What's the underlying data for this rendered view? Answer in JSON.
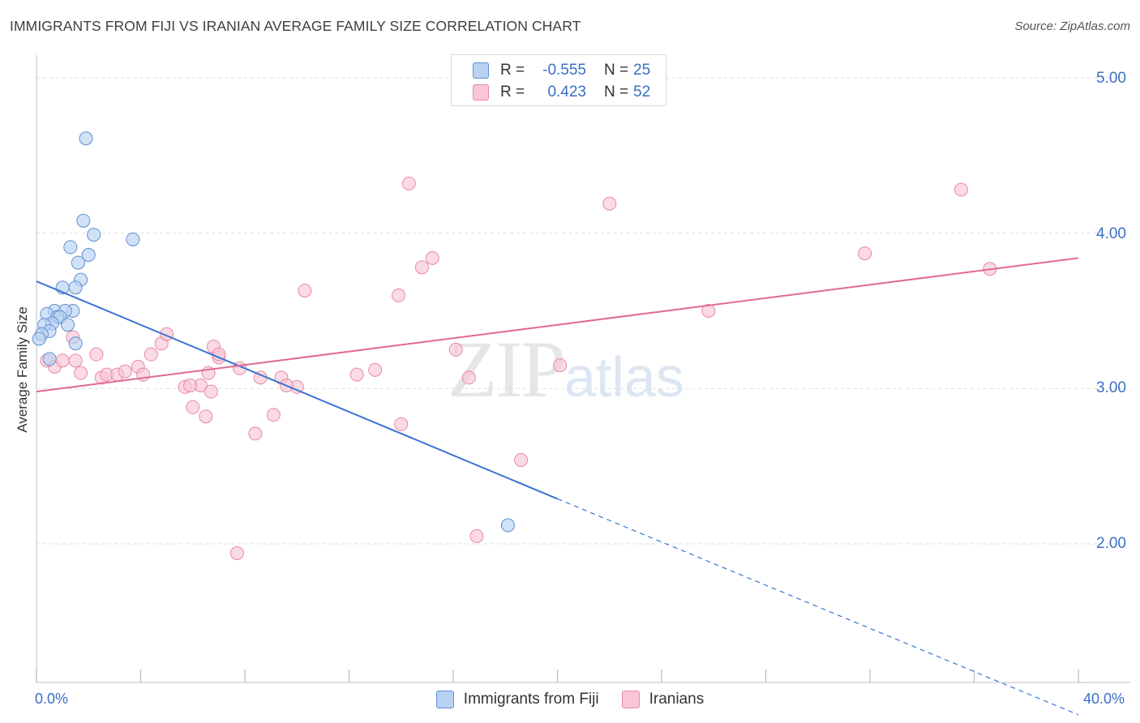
{
  "header": {
    "title": "IMMIGRANTS FROM FIJI VS IRANIAN AVERAGE FAMILY SIZE CORRELATION CHART",
    "source": "Source: ZipAtlas.com"
  },
  "watermark": {
    "zip": "ZIP",
    "atlas": "atlas"
  },
  "legend": {
    "fiji": {
      "r_label": "R =",
      "r_value": "-0.555",
      "n_label": "N =",
      "n_value": "25"
    },
    "iran": {
      "r_label": "R =",
      "r_value": "0.423",
      "n_label": "N =",
      "n_value": "52"
    }
  },
  "colors": {
    "fiji_fill": "#b9d2f3",
    "fiji_stroke": "#5f8fd1",
    "fiji_line": "#3a74d1",
    "iran_fill": "#f8c6d6",
    "iran_stroke": "#e889a6",
    "iran_line": "#e06a92",
    "grid": "#dddddd",
    "axis": "#cccccc",
    "tick_text": "#3a6fc4"
  },
  "chart_data": {
    "type": "scatter",
    "title": "IMMIGRANTS FROM FIJI VS IRANIAN AVERAGE FAMILY SIZE CORRELATION CHART",
    "xlabel": "",
    "ylabel": "Average Family Size",
    "xlim": [
      0,
      40
    ],
    "ylim": [
      1.0,
      5.15
    ],
    "x_tick_labels": [
      {
        "value": 0,
        "label": "0.0%"
      },
      {
        "value": 40,
        "label": "40.0%"
      }
    ],
    "y_ticks": [
      {
        "value": 2.0,
        "label": "2.00"
      },
      {
        "value": 3.0,
        "label": "3.00"
      },
      {
        "value": 4.0,
        "label": "4.00"
      },
      {
        "value": 5.0,
        "label": "5.00"
      }
    ],
    "series": [
      {
        "name": "Immigrants from Fiji",
        "points": [
          [
            1.9,
            4.61
          ],
          [
            1.8,
            4.08
          ],
          [
            2.2,
            3.99
          ],
          [
            3.7,
            3.96
          ],
          [
            1.3,
            3.91
          ],
          [
            2.0,
            3.86
          ],
          [
            1.6,
            3.81
          ],
          [
            1.7,
            3.7
          ],
          [
            1.0,
            3.65
          ],
          [
            1.5,
            3.65
          ],
          [
            0.7,
            3.5
          ],
          [
            1.4,
            3.5
          ],
          [
            1.1,
            3.5
          ],
          [
            0.4,
            3.48
          ],
          [
            0.8,
            3.46
          ],
          [
            0.9,
            3.46
          ],
          [
            0.6,
            3.42
          ],
          [
            0.3,
            3.41
          ],
          [
            1.2,
            3.41
          ],
          [
            0.5,
            3.37
          ],
          [
            0.2,
            3.35
          ],
          [
            0.1,
            3.32
          ],
          [
            1.5,
            3.29
          ],
          [
            0.5,
            3.19
          ],
          [
            18.1,
            2.12
          ]
        ],
        "trend": {
          "x0": 0.0,
          "y0": 3.69,
          "x1": 20.0,
          "y1": 2.29,
          "dashed_to_x": 40.0,
          "dashed_to_y": 0.9
        }
      },
      {
        "name": "Iranians",
        "points": [
          [
            14.3,
            4.32
          ],
          [
            22.0,
            4.19
          ],
          [
            35.5,
            4.28
          ],
          [
            15.2,
            3.84
          ],
          [
            14.8,
            3.78
          ],
          [
            31.8,
            3.87
          ],
          [
            36.6,
            3.77
          ],
          [
            10.3,
            3.63
          ],
          [
            13.9,
            3.6
          ],
          [
            25.8,
            3.5
          ],
          [
            1.4,
            3.33
          ],
          [
            2.3,
            3.22
          ],
          [
            4.4,
            3.22
          ],
          [
            6.8,
            3.27
          ],
          [
            4.8,
            3.29
          ],
          [
            5.0,
            3.35
          ],
          [
            7.0,
            3.2
          ],
          [
            7.0,
            3.22
          ],
          [
            16.1,
            3.25
          ],
          [
            0.4,
            3.18
          ],
          [
            1.5,
            3.18
          ],
          [
            0.7,
            3.14
          ],
          [
            1.0,
            3.18
          ],
          [
            2.5,
            3.07
          ],
          [
            1.7,
            3.1
          ],
          [
            2.7,
            3.09
          ],
          [
            3.1,
            3.09
          ],
          [
            3.4,
            3.11
          ],
          [
            3.9,
            3.14
          ],
          [
            4.1,
            3.09
          ],
          [
            6.3,
            3.02
          ],
          [
            5.7,
            3.01
          ],
          [
            5.9,
            3.02
          ],
          [
            6.6,
            3.1
          ],
          [
            7.8,
            3.13
          ],
          [
            8.6,
            3.07
          ],
          [
            9.4,
            3.07
          ],
          [
            10.0,
            3.01
          ],
          [
            12.3,
            3.09
          ],
          [
            20.1,
            3.15
          ],
          [
            16.6,
            3.07
          ],
          [
            9.6,
            3.02
          ],
          [
            13.0,
            3.12
          ],
          [
            6.7,
            2.98
          ],
          [
            6.0,
            2.88
          ],
          [
            6.5,
            2.82
          ],
          [
            9.1,
            2.83
          ],
          [
            8.4,
            2.71
          ],
          [
            14.0,
            2.77
          ],
          [
            18.6,
            2.54
          ],
          [
            7.7,
            1.94
          ],
          [
            16.9,
            2.05
          ]
        ],
        "trend": {
          "x0": 0.0,
          "y0": 2.98,
          "x1": 40.0,
          "y1": 3.84
        }
      }
    ],
    "legend_position": "top-center",
    "grid": true
  }
}
